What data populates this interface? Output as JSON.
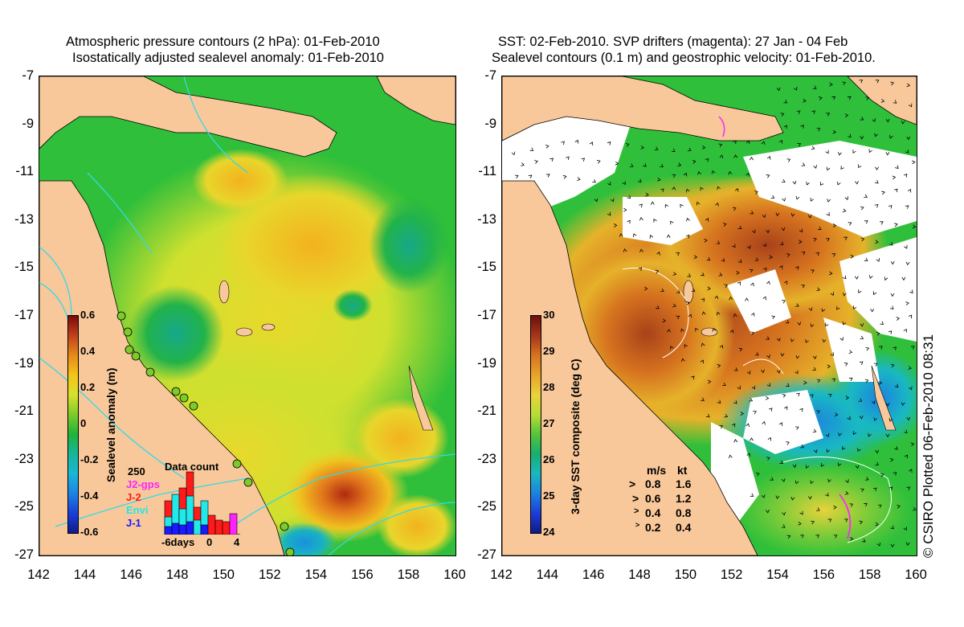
{
  "left": {
    "title_line1": "Atmospheric pressure contours (2 hPa): 01-Feb-2010",
    "title_line2": "Isostatically adjusted sealevel anomaly: 01-Feb-2010",
    "colorbar_label": "Sealevel anomaly (m)",
    "colorbar_ticks": [
      "0.6",
      "0.4",
      "0.2",
      "0",
      "-0.2",
      "-0.4",
      "-0.6"
    ],
    "colorbar_colors": [
      "#7a0a0a",
      "#c0421c",
      "#e58a1a",
      "#f3c518",
      "#d8e02a",
      "#7ccb2a",
      "#20b43a",
      "#16b59a",
      "#19b7d4",
      "#1a84e3",
      "#1a3fd8",
      "#121a8c"
    ],
    "inset": {
      "title": "Data count",
      "ymax_label": "250",
      "legend": [
        {
          "name": "J2-gps",
          "color": "#ff22ff"
        },
        {
          "name": "J-2",
          "color": "#ff1a1a"
        },
        {
          "name": "Envi",
          "color": "#22e8e8"
        },
        {
          "name": "J-1",
          "color": "#1a1aff"
        }
      ],
      "xticks": [
        "-6days",
        "0",
        "4"
      ]
    }
  },
  "right": {
    "title_line1": "SST: 02-Feb-2010. SVP drifters (magenta): 27 Jan - 04 Feb",
    "title_line2": "Sealevel contours (0.1 m) and geostrophic velocity: 01-Feb-2010.",
    "colorbar_label": "3-day SST composite (deg C)",
    "colorbar_ticks": [
      "30",
      "29",
      "28",
      "27",
      "26",
      "25",
      "24"
    ],
    "colorbar_colors": [
      "#6b0f0f",
      "#a5361a",
      "#d6731f",
      "#e7a52a",
      "#e9d23a",
      "#b8dd37",
      "#55c43a",
      "#19ae6e",
      "#19b8c2",
      "#1c82e0",
      "#1c3ed8",
      "#101a84"
    ],
    "speed_legend": {
      "header_ms": "m/s",
      "header_kt": "kt",
      "rows": [
        {
          "ms": "0.8",
          "kt": "1.6"
        },
        {
          "ms": "0.6",
          "kt": "1.2"
        },
        {
          "ms": "0.4",
          "kt": "0.8"
        },
        {
          "ms": "0.2",
          "kt": "0.4"
        }
      ]
    }
  },
  "y_labels": [
    "-7",
    "-9",
    "-11",
    "-13",
    "-15",
    "-17",
    "-19",
    "-21",
    "-23",
    "-25",
    "-27"
  ],
  "x_labels": [
    "142",
    "144",
    "146",
    "148",
    "150",
    "152",
    "154",
    "156",
    "158",
    "160"
  ],
  "credit": "© CSIRO Plotted 06-Feb-2010 08:31",
  "colors": {
    "land": "#f8c89a",
    "cloud": "#ffffff",
    "ocean_green": "#2fbf3a",
    "ocean_yellow": "#dfe233"
  }
}
